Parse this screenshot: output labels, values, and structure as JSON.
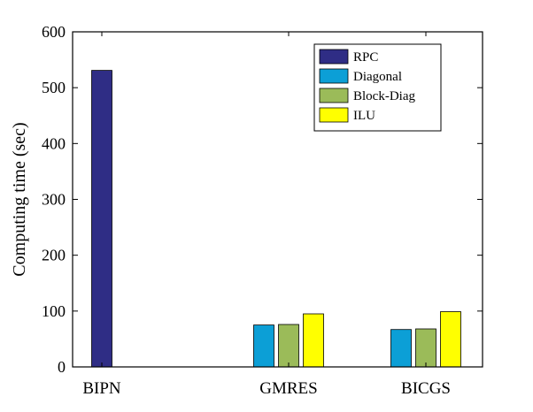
{
  "chart_data": {
    "type": "bar",
    "title": "",
    "xlabel": "",
    "ylabel": "Computing time (sec)",
    "ylim": [
      0,
      600
    ],
    "yticks": [
      0,
      100,
      200,
      300,
      400,
      500,
      600
    ],
    "categories": [
      "BIPN",
      "GMRES",
      "BICGS"
    ],
    "series": [
      {
        "name": "RPC",
        "color": "#2f2d85",
        "values": [
          531,
          null,
          null
        ]
      },
      {
        "name": "Diagonal",
        "color": "#0c9fd6",
        "values": [
          null,
          75,
          67
        ]
      },
      {
        "name": "Block-Diag",
        "color": "#9bbb59",
        "values": [
          null,
          76,
          68
        ]
      },
      {
        "name": "ILU",
        "color": "#ffff00",
        "values": [
          null,
          95,
          99
        ]
      }
    ],
    "legend_position": "top-right",
    "grid": false
  }
}
